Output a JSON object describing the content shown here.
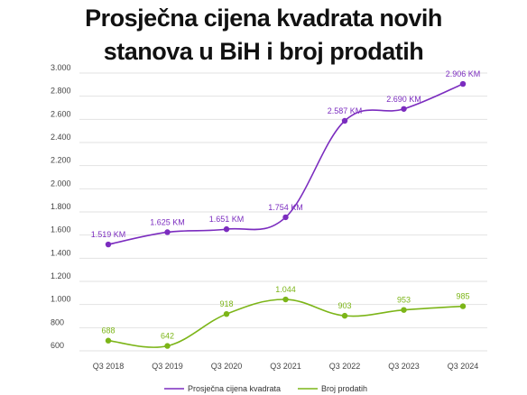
{
  "title_line1": "Prosječna cijena kvadrata novih",
  "title_line2": "stanova u BiH i broj prodatih",
  "chart_data": {
    "type": "line",
    "categories": [
      "Q3 2018",
      "Q3 2019",
      "Q3 2020",
      "Q3 2021",
      "Q3 2022",
      "Q3 2023",
      "Q3 2024"
    ],
    "y_ticks": [
      "600",
      "800",
      "1.000",
      "1.200",
      "1.400",
      "1.600",
      "1.800",
      "2.000",
      "2.200",
      "2.400",
      "2.600",
      "2.800",
      "3.000"
    ],
    "ylim": [
      600,
      3000
    ],
    "grid": true,
    "legend_position": "bottom",
    "series": [
      {
        "name": "Prosječna cijena kvadrata",
        "color": "#7b2cbf",
        "values": [
          1519,
          1625,
          1651,
          1754,
          2587,
          2690,
          2906
        ],
        "labels": [
          "1.519 KM",
          "1.625 KM",
          "1.651 KM",
          "1.754 KM",
          "2.587 KM",
          "2.690 KM",
          "2.906 KM"
        ]
      },
      {
        "name": "Broj prodatih",
        "color": "#7cb518",
        "values": [
          688,
          642,
          918,
          1044,
          903,
          953,
          985
        ],
        "labels": [
          "688",
          "642",
          "918",
          "1.044",
          "903",
          "953",
          "985"
        ]
      }
    ]
  }
}
